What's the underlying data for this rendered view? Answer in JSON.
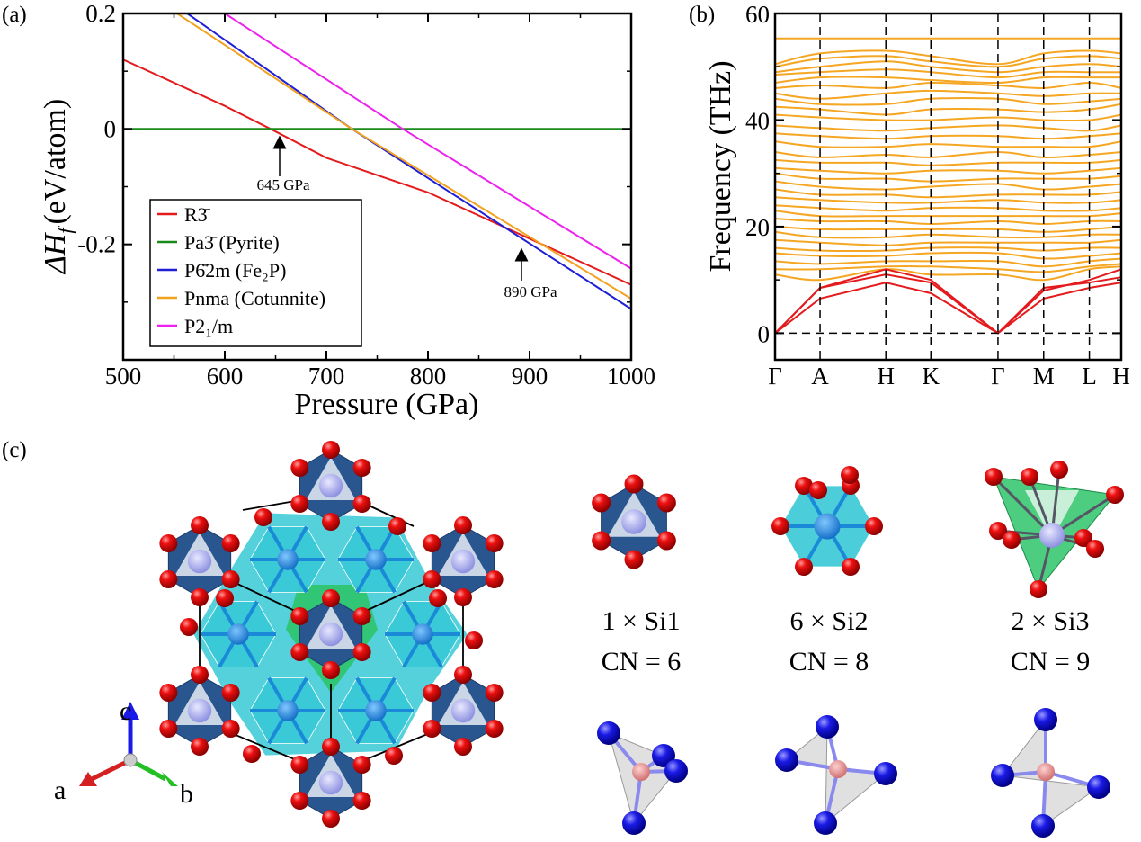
{
  "panels": {
    "a": "(a)",
    "b": "(b)",
    "c": "(c)"
  },
  "chart_data": [
    {
      "type": "line",
      "panel": "(a)",
      "xlabel": "Pressure (GPa)",
      "ylabel_main": "ΔH",
      "ylabel_sub": "f",
      "ylabel_unit": "(eV/atom)",
      "xlim": [
        500,
        1000
      ],
      "ylim": [
        -0.4,
        0.2
      ],
      "xticks": [
        500,
        600,
        700,
        800,
        900,
        1000
      ],
      "xtick_labels": [
        "500",
        "600",
        "700",
        "800",
        "900",
        "1000"
      ],
      "yticks": [
        0.2,
        0,
        -0.2
      ],
      "ytick_labels": [
        "0.2",
        "0",
        "-0.2"
      ],
      "grid": false,
      "legend_position": "bottom-left",
      "series": [
        {
          "name": "R3̄",
          "color": "#e41a1c",
          "points": [
            [
              500,
              0.12
            ],
            [
              600,
              0.04
            ],
            [
              645,
              0
            ],
            [
              700,
              -0.05
            ],
            [
              800,
              -0.11
            ],
            [
              900,
              -0.19
            ],
            [
              1000,
              -0.27
            ]
          ]
        },
        {
          "name": "Pa3̄ (Pyrite)",
          "color": "#1a8a1a",
          "points": [
            [
              500,
              0
            ],
            [
              1000,
              0
            ]
          ]
        },
        {
          "name": "P6̄2m (Fe₂P)",
          "color": "#1f1fd6",
          "points": [
            [
              563,
              0.2
            ],
            [
              725,
              0
            ],
            [
              1000,
              -0.312
            ]
          ]
        },
        {
          "name": "Pnma (Cotunnite)",
          "color": "#f2a21f",
          "points": [
            [
              553,
              0.2
            ],
            [
              725,
              0
            ],
            [
              1000,
              -0.294
            ]
          ]
        },
        {
          "name": "P2₁/m",
          "color": "#ee22ee",
          "points": [
            [
              600,
              0.2
            ],
            [
              775,
              0
            ],
            [
              1000,
              -0.242
            ]
          ]
        }
      ],
      "annotations": [
        {
          "text": "645 GPa",
          "x": 645,
          "y": 0
        },
        {
          "text": "890 GPa",
          "x": 890,
          "y": -0.19
        }
      ]
    },
    {
      "type": "line",
      "panel": "(b)",
      "ylabel": "Frequency (THz)",
      "ylim": [
        -5,
        60
      ],
      "yticks": [
        0,
        20,
        40,
        60
      ],
      "ytick_labels": [
        "0",
        "20",
        "40",
        "60"
      ],
      "kpoints": [
        "Γ",
        "A",
        "H",
        "K",
        "Γ",
        "M",
        "L",
        "H"
      ],
      "kpoint_positions": [
        0,
        0.13,
        0.32,
        0.45,
        0.644,
        0.776,
        0.908,
        1.0
      ],
      "acoustic_color": "#e41a1c",
      "optical_color": "#f5a623",
      "acoustic_bands": [
        [
          0,
          6.5,
          9.5,
          7.5,
          0,
          6.5,
          8.5,
          9.5
        ],
        [
          0,
          8.5,
          11,
          9.5,
          0,
          8.5,
          9.5,
          10.5
        ],
        [
          0,
          8.5,
          12,
          10,
          0,
          8,
          10,
          12
        ]
      ],
      "optical_bands": [
        [
          55.3,
          55.3,
          55.3,
          55.3,
          55.3,
          55.3,
          55.3,
          55.3
        ],
        [
          50.5,
          52.5,
          53,
          52,
          50.5,
          52.5,
          53,
          52.5
        ],
        [
          50,
          51.5,
          52,
          51,
          50,
          51.5,
          52,
          51.5
        ],
        [
          49,
          50,
          51,
          50,
          49,
          50,
          50.5,
          50
        ],
        [
          48.5,
          49,
          49.5,
          49,
          48,
          49,
          49,
          49
        ],
        [
          47,
          48,
          48,
          47.5,
          47,
          48,
          48,
          48
        ],
        [
          46,
          46.5,
          46,
          47,
          46.5,
          46,
          47,
          46
        ],
        [
          45,
          44,
          45,
          45.5,
          45,
          44.5,
          45,
          45
        ],
        [
          44,
          43,
          43,
          44,
          44,
          43,
          43.5,
          44
        ],
        [
          42.5,
          42,
          41,
          42,
          42,
          41.5,
          42,
          43
        ],
        [
          41,
          40.5,
          40,
          40,
          40.5,
          40,
          40,
          41
        ],
        [
          39,
          38.5,
          38,
          38.5,
          39,
          38.5,
          38,
          39
        ],
        [
          37.5,
          37,
          36.5,
          37,
          37,
          36.5,
          37,
          37.5
        ],
        [
          36,
          35,
          35,
          35.5,
          35,
          35,
          35,
          36
        ],
        [
          34,
          33,
          33.5,
          33,
          34,
          33,
          33.5,
          34
        ],
        [
          32.5,
          32,
          32,
          31.5,
          32,
          32,
          32,
          32.5
        ],
        [
          31,
          30.5,
          30,
          30.5,
          30.5,
          30,
          30.5,
          31
        ],
        [
          30,
          29,
          29,
          28.5,
          29,
          29,
          29,
          29.5
        ],
        [
          28.5,
          27.5,
          27,
          27.5,
          28,
          27,
          27.5,
          28
        ],
        [
          27,
          26,
          26,
          25.5,
          26,
          26,
          26,
          26.5
        ],
        [
          25.5,
          25,
          24.5,
          24.5,
          25,
          24.5,
          24.5,
          25
        ],
        [
          24,
          23.5,
          23,
          23.5,
          23.5,
          23,
          23,
          23.5
        ],
        [
          23,
          22,
          22,
          22,
          22,
          22,
          22,
          22.5
        ],
        [
          21.5,
          21,
          21,
          20.5,
          21,
          20.5,
          21,
          21
        ],
        [
          20,
          19.5,
          19.5,
          19.5,
          19.5,
          19,
          19.5,
          20
        ],
        [
          19,
          18,
          18,
          18.5,
          18,
          18,
          18.5,
          18.5
        ],
        [
          17.5,
          17,
          16.5,
          17,
          17,
          17,
          17,
          17.5
        ],
        [
          16,
          15.5,
          15.5,
          16,
          16,
          15.5,
          16,
          16
        ],
        [
          15,
          14.5,
          14.5,
          15,
          15,
          14,
          14.5,
          15
        ],
        [
          13.5,
          13,
          13.5,
          13.5,
          13.5,
          12.5,
          13.5,
          14
        ],
        [
          12,
          12,
          12.5,
          12.5,
          12,
          11.5,
          12.5,
          13
        ],
        [
          11,
          10,
          12,
          11,
          11,
          10,
          12,
          12.5
        ]
      ]
    }
  ],
  "structure": {
    "axes": {
      "a": "a",
      "b": "b",
      "c": "c"
    },
    "sites": [
      {
        "count": "1 × Si1",
        "cn": "CN = 6"
      },
      {
        "count": "6 × Si2",
        "cn": "CN = 8"
      },
      {
        "count": "2 × Si3",
        "cn": "CN = 9"
      }
    ],
    "colors": {
      "oxygen": "#e00000",
      "si1_polyhedron": "#2a5690",
      "si2_polyhedron": "#37c9d6",
      "si3_polyhedron": "#2ec46a",
      "anion_site": "#1a1ae6"
    }
  }
}
